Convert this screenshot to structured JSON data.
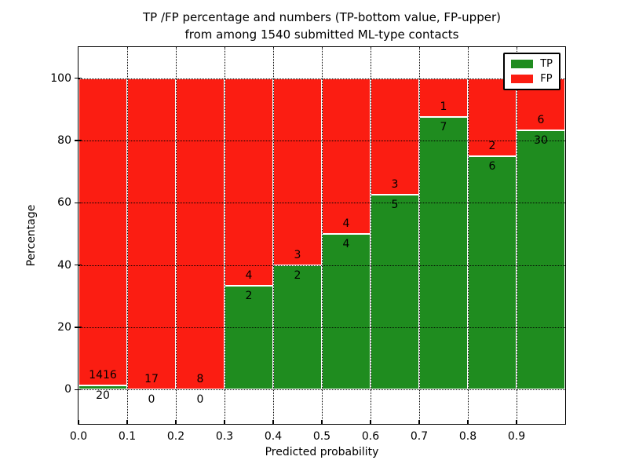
{
  "figure": {
    "title_line1": "TP /FP percentage and numbers (TP-bottom value, FP-upper)",
    "title_line2": "from among 1540 submitted ML-type contacts"
  },
  "chart_data": {
    "type": "bar",
    "subtype": "stacked-percentage-histogram",
    "title": "TP /FP percentage and numbers (TP-bottom value, FP-upper) from among 1540 submitted ML-type contacts",
    "xlabel": "Predicted probability",
    "ylabel": "Percentage",
    "total_contacts": 1540,
    "xlim": [
      0.0,
      1.0
    ],
    "ylim": [
      -11,
      110
    ],
    "bin_width": 0.1,
    "x_tick_labels": [
      "0.0",
      "0.1",
      "0.2",
      "0.3",
      "0.4",
      "0.5",
      "0.6",
      "0.7",
      "0.8",
      "0.9"
    ],
    "y_tick_values": [
      0,
      20,
      40,
      60,
      80,
      100
    ],
    "grid": "dotted-black-over-bars",
    "legend_position": "upper right",
    "categories": [
      "0.0-0.1",
      "0.1-0.2",
      "0.2-0.3",
      "0.3-0.4",
      "0.4-0.5",
      "0.5-0.6",
      "0.6-0.7",
      "0.7-0.8",
      "0.8-0.9",
      "0.9-1.0"
    ],
    "series": [
      {
        "name": "TP",
        "color": "#1f8c1f",
        "values": [
          20,
          0,
          0,
          2,
          2,
          4,
          5,
          7,
          6,
          30
        ]
      },
      {
        "name": "FP",
        "color": "#fb1d12",
        "values": [
          1416,
          17,
          8,
          4,
          3,
          4,
          3,
          1,
          2,
          6
        ]
      }
    ],
    "bar_edge_color": "#ffffff",
    "annotation_note": "FP count printed above TP/FP boundary, TP count below"
  }
}
